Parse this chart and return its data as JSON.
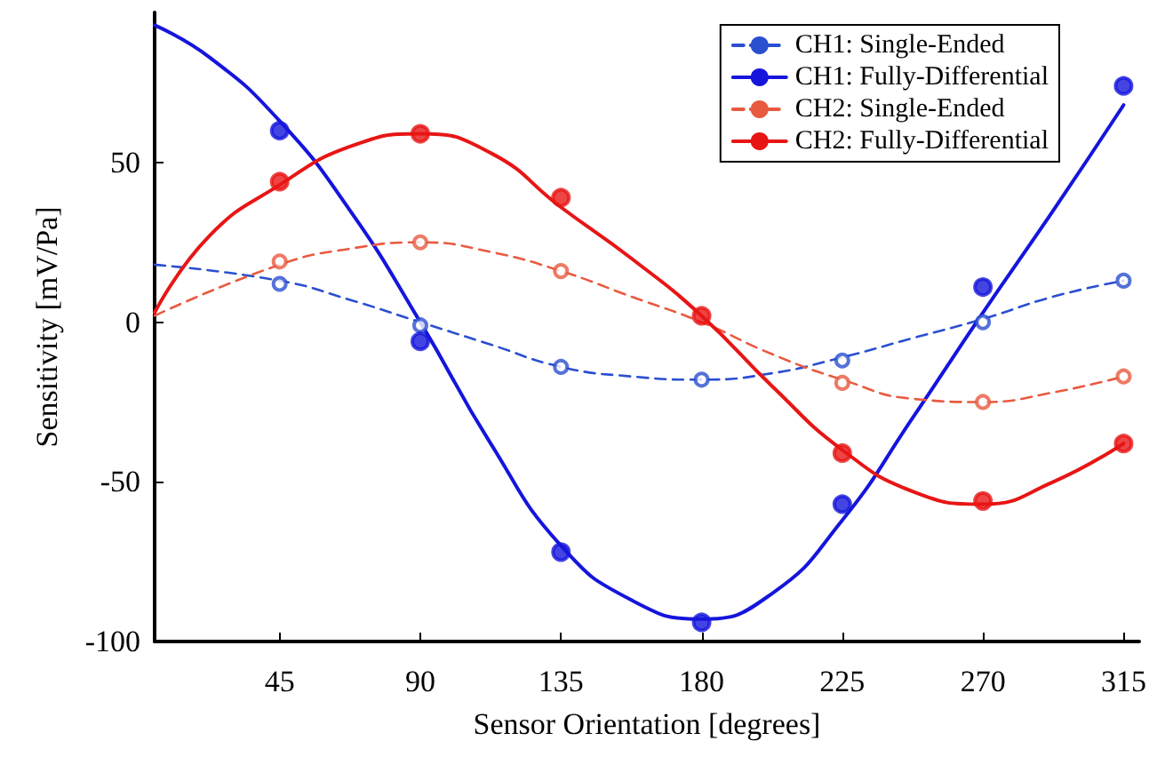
{
  "chart_data": {
    "type": "line",
    "xlabel": "Sensor Orientation [degrees]",
    "ylabel": "Sensitivity [mV/Pa]",
    "xlim": [
      5,
      320
    ],
    "xticks": [
      45,
      90,
      135,
      180,
      225,
      270,
      315
    ],
    "ylim": [
      -100,
      97
    ],
    "yticks": [
      -100,
      -50,
      0,
      50
    ],
    "grid": false,
    "legend": "top right",
    "series": [
      {
        "name": "CH1: Single-Ended",
        "color": "#2a4fd0",
        "line_style": "dashed",
        "marker": "none",
        "x": [
          5,
          45,
          67.5,
          90,
          112.5,
          135,
          157.5,
          180,
          202.5,
          225,
          247.5,
          270,
          292.5,
          315
        ],
        "values": [
          18,
          13,
          7,
          0,
          -7,
          -14,
          -17,
          -18,
          -16,
          -11,
          -5,
          1,
          8,
          13
        ]
      },
      {
        "name": "CH1: Fully-Differential",
        "color": "#1515dc",
        "line_style": "solid",
        "marker": "none",
        "x": [
          5,
          22.5,
          45,
          67.5,
          90,
          112.5,
          135,
          157.5,
          180,
          202.5,
          225,
          247.5,
          270,
          292.5,
          315
        ],
        "values": [
          93,
          83,
          63,
          35,
          0,
          -38,
          -70,
          -87,
          -93,
          -85,
          -62,
          -30,
          3,
          35,
          68
        ]
      },
      {
        "name": "CH2: Single-Ended",
        "color": "#e85a40",
        "line_style": "dashed",
        "marker": "none",
        "x": [
          5,
          45,
          67.5,
          90,
          112.5,
          135,
          157.5,
          180,
          202.5,
          225,
          247.5,
          270,
          292.5,
          315
        ],
        "values": [
          2,
          18,
          23,
          25,
          22,
          16,
          8,
          0,
          -10,
          -18,
          -24,
          -25,
          -22,
          -17
        ]
      },
      {
        "name": "CH2: Fully-Differential",
        "color": "#e81515",
        "line_style": "solid",
        "marker": "none",
        "x": [
          5,
          22.5,
          45,
          67.5,
          90,
          112.5,
          135,
          157.5,
          180,
          202.5,
          225,
          247.5,
          270,
          292.5,
          315
        ],
        "values": [
          3,
          27,
          43,
          55,
          59,
          53,
          36,
          20,
          2,
          -20,
          -40,
          -53,
          -57,
          -50,
          -38
        ]
      },
      {
        "type": "scatter",
        "color": "#2a4fd0",
        "line_style": "dashed",
        "marker": "circle",
        "x": [
          45,
          90,
          135,
          180,
          225,
          270,
          315
        ],
        "values": [
          12,
          -1,
          -14,
          -18,
          -12,
          0,
          13
        ]
      },
      {
        "type": "scatter",
        "color": "#1515dc",
        "line_style": "solid",
        "marker": "circle",
        "x": [
          45,
          90,
          135,
          180,
          225,
          270,
          315
        ],
        "values": [
          60,
          -6,
          -72,
          -94,
          -57,
          11,
          74
        ]
      },
      {
        "type": "scatter",
        "color": "#e85a40",
        "line_style": "dashed",
        "marker": "circle",
        "x": [
          45,
          90,
          135,
          180,
          225,
          270,
          315
        ],
        "values": [
          19,
          25,
          16,
          null,
          -19,
          -25,
          -17
        ]
      },
      {
        "type": "scatter",
        "color": "#e81515",
        "line_style": "solid",
        "marker": "circle",
        "x": [
          45,
          90,
          135,
          180,
          225,
          270,
          315
        ],
        "values": [
          44,
          59,
          39,
          2,
          -41,
          -56,
          -38
        ]
      }
    ]
  }
}
